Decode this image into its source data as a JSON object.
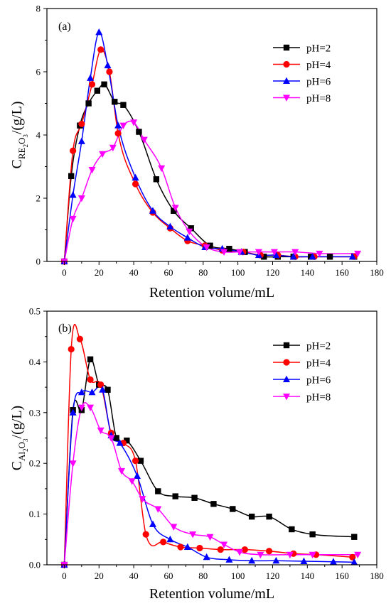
{
  "chart_data": [
    {
      "type": "line",
      "panel_label": "(a)",
      "xlabel": "Retention volume/mL",
      "ylabel": {
        "main": "C",
        "sub": "RE",
        "sub2": "2",
        "sub3": "O",
        "sub4": "3",
        "unit": "/(g/L)"
      },
      "xlim": [
        -10,
        180
      ],
      "ylim": [
        0,
        8
      ],
      "xticks": [
        "0",
        "20",
        "40",
        "60",
        "80",
        "100",
        "120",
        "140",
        "160",
        "180"
      ],
      "yticks": [
        "0",
        "2",
        "4",
        "6",
        "8"
      ],
      "legend_position": "top-right",
      "series": [
        {
          "name": "pH=2",
          "color": "#000000",
          "marker": "square",
          "x": [
            0,
            4,
            9,
            14,
            19,
            23,
            29,
            34,
            43,
            53,
            63,
            73,
            84,
            95,
            104,
            115,
            123,
            132,
            142,
            153,
            167
          ],
          "y": [
            0,
            2.7,
            4.3,
            5.0,
            5.4,
            5.6,
            5.05,
            4.95,
            4.1,
            2.6,
            1.6,
            1.05,
            0.5,
            0.4,
            0.3,
            0.15,
            0.15,
            0.15,
            0.15,
            0.15,
            0.15
          ]
        },
        {
          "name": "pH=4",
          "color": "#ff0000",
          "marker": "circle",
          "x": [
            0,
            5,
            10,
            16,
            21,
            26,
            31,
            41,
            51,
            61,
            71,
            81,
            91,
            103,
            113,
            123,
            133,
            144,
            167
          ],
          "y": [
            0,
            3.5,
            4.35,
            5.6,
            6.7,
            6.0,
            4.05,
            2.45,
            1.55,
            1.05,
            0.65,
            0.5,
            0.35,
            0.3,
            0.2,
            0.2,
            0.15,
            0.15,
            0.15
          ]
        },
        {
          "name": "pH=6",
          "color": "#0000ff",
          "marker": "triangle",
          "x": [
            0,
            5,
            10,
            15,
            20,
            25,
            31,
            41,
            51,
            61,
            71,
            81,
            91,
            102,
            112,
            122,
            132,
            143,
            166
          ],
          "y": [
            0,
            2.1,
            3.8,
            5.8,
            7.25,
            6.2,
            4.3,
            2.65,
            1.6,
            1.1,
            0.75,
            0.45,
            0.4,
            0.3,
            0.2,
            0.2,
            0.15,
            0.15,
            0.15
          ]
        },
        {
          "name": "pH=8",
          "color": "#ff00ff",
          "marker": "triangle-down",
          "x": [
            0,
            5,
            10,
            16,
            22,
            28,
            34,
            40,
            46,
            56,
            64,
            72,
            82,
            92,
            101,
            112,
            121,
            133,
            147,
            169
          ],
          "y": [
            0,
            1.35,
            2.0,
            2.9,
            3.4,
            3.6,
            4.3,
            4.4,
            3.85,
            2.95,
            1.7,
            0.95,
            0.45,
            0.3,
            0.3,
            0.3,
            0.3,
            0.3,
            0.25,
            0.25
          ]
        }
      ]
    },
    {
      "type": "line",
      "panel_label": "(b)",
      "xlabel": "Retention volume/mL",
      "ylabel": {
        "main": "C",
        "sub": "Al",
        "sub2": "2",
        "sub3": "O",
        "sub4": "3",
        "unit": "/(g/L)"
      },
      "xlim": [
        -10,
        180
      ],
      "ylim": [
        0,
        0.5
      ],
      "xticks": [
        "0",
        "20",
        "40",
        "60",
        "80",
        "100",
        "120",
        "140",
        "160",
        "180"
      ],
      "yticks": [
        "0.0",
        "0.1",
        "0.2",
        "0.3",
        "0.4",
        "0.5"
      ],
      "legend_position": "top-right",
      "series": [
        {
          "name": "pH=2",
          "color": "#000000",
          "marker": "square",
          "x": [
            0,
            5,
            10,
            15,
            20,
            25,
            30,
            36,
            44,
            54,
            64,
            75,
            86,
            97,
            108,
            118,
            131,
            143,
            167
          ],
          "y": [
            0,
            0.305,
            0.305,
            0.405,
            0.355,
            0.345,
            0.25,
            0.245,
            0.205,
            0.145,
            0.135,
            0.132,
            0.12,
            0.11,
            0.095,
            0.095,
            0.07,
            0.06,
            0.055
          ]
        },
        {
          "name": "pH=4",
          "color": "#ff0000",
          "marker": "circle",
          "x": [
            0,
            4,
            9,
            15,
            21,
            27,
            34,
            41,
            47,
            57,
            67,
            78,
            90,
            104,
            118,
            132,
            145,
            166
          ],
          "y": [
            0,
            0.425,
            0.445,
            0.365,
            0.355,
            0.26,
            0.24,
            0.205,
            0.06,
            0.045,
            0.035,
            0.033,
            0.03,
            0.03,
            0.027,
            0.022,
            0.02,
            0.015
          ]
        },
        {
          "name": "pH=6",
          "color": "#0000ff",
          "marker": "triangle",
          "x": [
            0,
            5,
            10,
            16,
            22,
            27,
            32,
            42,
            51,
            61,
            71,
            82,
            95,
            108,
            122,
            138,
            155,
            167
          ],
          "y": [
            0,
            0.3,
            0.34,
            0.34,
            0.345,
            0.255,
            0.24,
            0.175,
            0.08,
            0.05,
            0.035,
            0.015,
            0.01,
            0.008,
            0.008,
            0.007,
            0.006,
            0.005
          ]
        },
        {
          "name": "pH=8",
          "color": "#ff00ff",
          "marker": "triangle-down",
          "x": [
            0,
            5,
            10,
            15,
            21,
            27,
            33,
            39,
            45,
            54,
            63,
            74,
            84,
            92,
            101,
            113,
            130,
            143,
            169
          ],
          "y": [
            0,
            0.2,
            0.31,
            0.31,
            0.265,
            0.25,
            0.185,
            0.165,
            0.13,
            0.11,
            0.075,
            0.06,
            0.055,
            0.04,
            0.025,
            0.02,
            0.02,
            0.02,
            0.02
          ]
        }
      ]
    }
  ]
}
